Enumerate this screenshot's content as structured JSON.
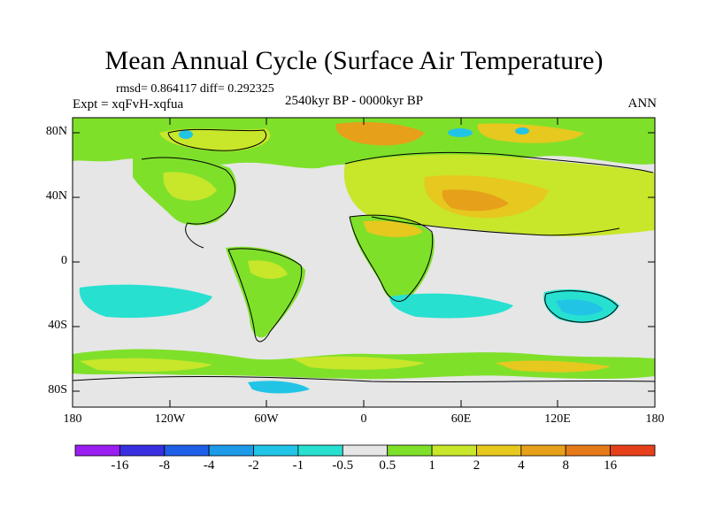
{
  "title": "Mean Annual Cycle (Surface Air Temperature)",
  "stats": "rmsd= 0.864117 diff= 0.292325",
  "experiment": "Expt = xqFvH-xqfua",
  "period": "2540kyr BP - 0000kyr BP",
  "season": "ANN",
  "lat_labels": [
    "80N",
    "40N",
    "0",
    "40S",
    "80S"
  ],
  "lon_labels": [
    "180",
    "120W",
    "60W",
    "0",
    "60E",
    "120E",
    "180"
  ],
  "colorbar": {
    "labels": [
      "-16",
      "-8",
      "-4",
      "-2",
      "-1",
      "-0.5",
      "0.5",
      "1",
      "2",
      "4",
      "8",
      "16"
    ],
    "colors": [
      "#9b1ff0",
      "#3a2fe0",
      "#1f5fe8",
      "#1d9be8",
      "#22c4e6",
      "#27e0d0",
      "#e6e6e6",
      "#7fe02a",
      "#c8e62a",
      "#e6c81f",
      "#e6a019",
      "#e67a19",
      "#e6401a"
    ]
  }
}
